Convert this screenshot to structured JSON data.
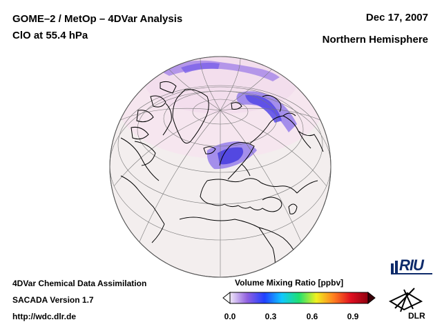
{
  "header": {
    "title": "GOME–2 / MetOp – 4DVar Analysis",
    "species": "ClO at 55.4 hPa",
    "date": "Dec 17, 2007",
    "region": "Northern Hemisphere"
  },
  "footer": {
    "line1": "4DVar Chemical Data Assimilation",
    "line2": "SACADA Version 1.7",
    "url": "http://wdc.dlr.de"
  },
  "colorbar": {
    "title": "Volume Mixing Ratio [ppbv]",
    "ticks": [
      "0.0",
      "0.3",
      "0.6",
      "0.9"
    ],
    "min": 0.0,
    "max": 1.0,
    "colors": [
      "#f0e8f8",
      "#9060e0",
      "#2040ff",
      "#10c8ff",
      "#20e070",
      "#f0f020",
      "#ff8020",
      "#e01020",
      "#900010"
    ]
  },
  "logos": {
    "riu": "RIU",
    "dlr": "DLR"
  },
  "map_colors": {
    "ocean_land_background": "#f3eeee",
    "clo_enhanced": "#8a70e8",
    "clo_high": "#4a40e0",
    "coastline": "#000000",
    "grid": "#555555"
  }
}
